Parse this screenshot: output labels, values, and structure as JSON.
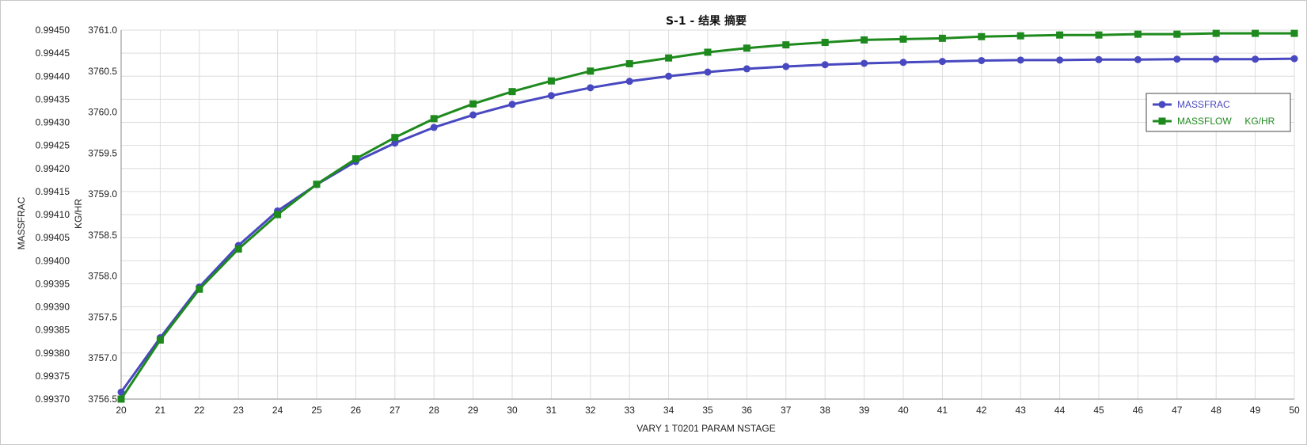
{
  "chart_data": {
    "type": "line",
    "title": "S-1 - 结果 摘要",
    "xlabel": "VARY   1 T0201    PARAM    NSTAGE",
    "ylabel_left": "MASSFRAC",
    "ylabel_right": "KG/HR",
    "x": [
      20,
      21,
      22,
      23,
      24,
      25,
      26,
      27,
      28,
      29,
      30,
      31,
      32,
      33,
      34,
      35,
      36,
      37,
      38,
      39,
      40,
      41,
      42,
      43,
      44,
      45,
      46,
      47,
      48,
      49,
      50
    ],
    "xlim": [
      20,
      50
    ],
    "x_ticks": [
      "20",
      "21",
      "22",
      "23",
      "24",
      "25",
      "26",
      "27",
      "28",
      "29",
      "30",
      "31",
      "32",
      "33",
      "34",
      "35",
      "36",
      "37",
      "38",
      "39",
      "40",
      "41",
      "42",
      "43",
      "44",
      "45",
      "46",
      "47",
      "48",
      "49",
      "50"
    ],
    "ylim_left": [
      0.9937,
      0.9945
    ],
    "ylim_right": [
      3756.5,
      3761.0
    ],
    "y_ticks_left": [
      "0.99370",
      "0.99375",
      "0.99380",
      "0.99385",
      "0.99390",
      "0.99395",
      "0.99400",
      "0.99405",
      "0.99410",
      "0.99415",
      "0.99420",
      "0.99425",
      "0.99430",
      "0.99435",
      "0.99440",
      "0.99445",
      "0.99450"
    ],
    "y_ticks_right": [
      "3756.5",
      "3757.0",
      "3757.5",
      "3758.0",
      "3758.5",
      "3759.0",
      "3759.5",
      "3760.0",
      "3760.5",
      "3761.0"
    ],
    "grid": true,
    "legend_position": "right",
    "series": [
      {
        "name": "MASSFRAC",
        "axis": "left",
        "color": "#4848c0",
        "marker": "circle",
        "values": [
          0.993715,
          0.993833,
          0.993943,
          0.994033,
          0.994108,
          0.994165,
          0.994215,
          0.994255,
          0.994289,
          0.994316,
          0.994339,
          0.994358,
          0.994375,
          0.994389,
          0.9944,
          0.994409,
          0.994416,
          0.994421,
          0.994425,
          0.994428,
          0.99443,
          0.994432,
          0.994434,
          0.994435,
          0.994435,
          0.994436,
          0.994436,
          0.994437,
          0.994437,
          0.994437,
          0.994438
        ]
      },
      {
        "name": "MASSFLOW     KG/HR",
        "axis": "right",
        "color": "#1e8a1e",
        "marker": "square",
        "values": [
          3756.5,
          3757.22,
          3757.84,
          3758.33,
          3758.75,
          3759.12,
          3759.43,
          3759.69,
          3759.92,
          3760.1,
          3760.25,
          3760.38,
          3760.5,
          3760.59,
          3760.66,
          3760.73,
          3760.78,
          3760.82,
          3760.85,
          3760.88,
          3760.89,
          3760.9,
          3760.92,
          3760.93,
          3760.94,
          3760.94,
          3760.95,
          3760.95,
          3760.96,
          3760.96,
          3760.96
        ]
      }
    ]
  }
}
